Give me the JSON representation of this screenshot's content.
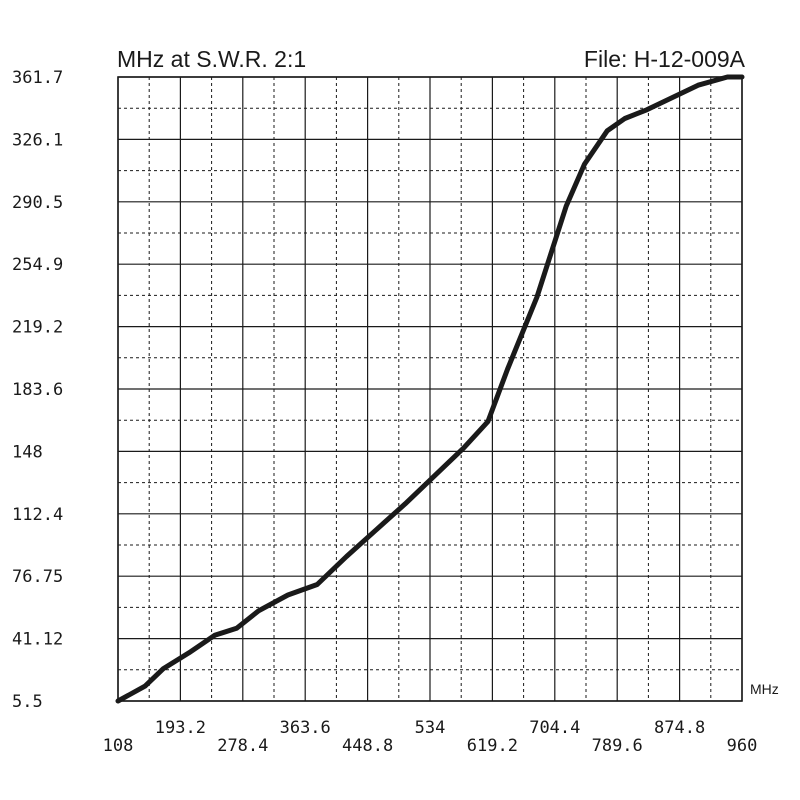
{
  "chart_data": {
    "type": "line",
    "title": "MHz at S.W.R.  2:1",
    "file_label": "File:  H-12-009A",
    "x_unit": "MHz",
    "xlim": [
      108,
      960
    ],
    "ylim": [
      5.5,
      361.7
    ],
    "x_ticks_lower": [
      "108",
      "278.4",
      "448.8",
      "619.2",
      "789.6",
      "960"
    ],
    "x_ticks_upper": [
      "193.2",
      "363.6",
      "534",
      "704.4",
      "874.8"
    ],
    "y_ticks": [
      "5.5",
      "41.12",
      "76.75",
      "112.4",
      "148",
      "183.6",
      "219.2",
      "254.9",
      "290.5",
      "326.1",
      "361.7"
    ],
    "grid": true,
    "x_minor_divisions": 2,
    "y_minor_divisions": 2,
    "series": [
      {
        "name": "",
        "color": "#1a1a1a",
        "x": [
          108,
          145,
          170,
          205,
          240,
          270,
          300,
          340,
          380,
          420,
          460,
          500,
          540,
          580,
          613,
          640,
          680,
          720,
          745,
          776,
          800,
          830,
          860,
          900,
          940,
          960
        ],
        "y": [
          5.5,
          14,
          24,
          33,
          43,
          47,
          57,
          66,
          72,
          88,
          103,
          118,
          134,
          150,
          165,
          195,
          236,
          288,
          312,
          331,
          338,
          343,
          349,
          357,
          364,
          368
        ]
      }
    ]
  }
}
